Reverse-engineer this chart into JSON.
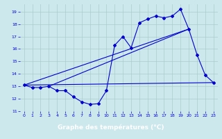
{
  "title": "Graphe des températures (°C)",
  "background_color": "#cce8ec",
  "label_bg_color": "#2222aa",
  "label_text_color": "#ffffff",
  "grid_color": "#aacccc",
  "line_color": "#0000cc",
  "xlim": [
    -0.5,
    23.5
  ],
  "ylim": [
    11,
    19.6
  ],
  "yticks": [
    11,
    12,
    13,
    14,
    15,
    16,
    17,
    18,
    19
  ],
  "xticks": [
    0,
    1,
    2,
    3,
    4,
    5,
    6,
    7,
    8,
    9,
    10,
    11,
    12,
    13,
    14,
    15,
    16,
    17,
    18,
    19,
    20,
    21,
    22,
    23
  ],
  "jagged": {
    "x": [
      0,
      1,
      2,
      3,
      4,
      5,
      6,
      7,
      8,
      9,
      10,
      11,
      12,
      13,
      14,
      15,
      16,
      17,
      18,
      19,
      20,
      21,
      22,
      23
    ],
    "y": [
      13.1,
      12.9,
      12.9,
      13.0,
      12.65,
      12.65,
      12.15,
      11.75,
      11.55,
      11.6,
      12.65,
      16.3,
      17.0,
      16.1,
      18.1,
      18.4,
      18.65,
      18.5,
      18.65,
      19.2,
      17.6,
      15.55,
      13.9,
      13.3
    ]
  },
  "straight_lines": [
    {
      "x": [
        0,
        20
      ],
      "y": [
        13.1,
        17.6
      ]
    },
    {
      "x": [
        0,
        23
      ],
      "y": [
        13.1,
        13.3
      ]
    },
    {
      "x": [
        3,
        20
      ],
      "y": [
        13.0,
        17.6
      ]
    }
  ]
}
